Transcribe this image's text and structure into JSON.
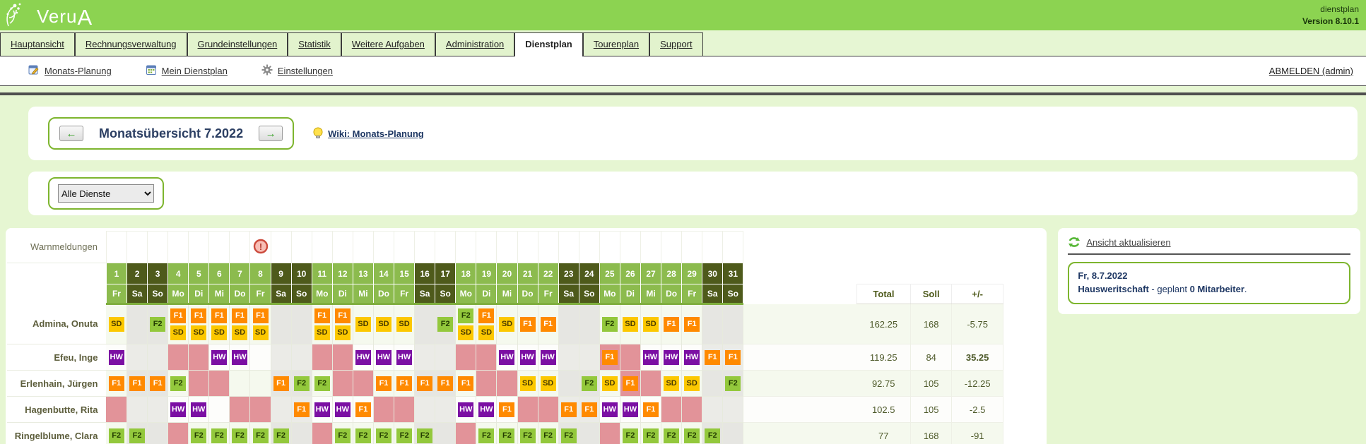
{
  "app": {
    "logo": "VeruA",
    "logo_prefix": "Veru",
    "logo_last": "A",
    "product": "dienstplan",
    "version": "Version 8.10.1"
  },
  "tabs": [
    {
      "label": "Hauptansicht",
      "active": false
    },
    {
      "label": "Rechnungsverwaltung",
      "active": false
    },
    {
      "label": "Grundeinstellungen",
      "active": false
    },
    {
      "label": "Statistik",
      "active": false
    },
    {
      "label": "Weitere Aufgaben",
      "active": false
    },
    {
      "label": "Administration",
      "active": false
    },
    {
      "label": "Dienstplan",
      "active": true
    },
    {
      "label": "Tourenplan",
      "active": false
    },
    {
      "label": "Support",
      "active": false
    }
  ],
  "toolbar": {
    "links": [
      {
        "label": "Monats-Planung",
        "icon": "calendar-edit-icon"
      },
      {
        "label": "Mein Dienstplan",
        "icon": "calendar-icon"
      },
      {
        "label": "Einstellungen",
        "icon": "gear-icon"
      }
    ],
    "logout_label": "ABMELDEN (admin)"
  },
  "month_nav": {
    "title": "Monatsübersicht 7.2022",
    "prev_arrow": "←",
    "next_arrow": "→",
    "wiki_label": "Wiki: Monats-Planung"
  },
  "filter": {
    "selected": "Alle Dienste"
  },
  "roster": {
    "warn_label": "Warnmeldungen",
    "warning_day": 8,
    "weekday_names": [
      "Fr",
      "Sa",
      "So",
      "Mo",
      "Di",
      "Mi",
      "Do",
      "Fr",
      "Sa",
      "So",
      "Mo",
      "Di",
      "Mi",
      "Do",
      "Fr",
      "Sa",
      "So",
      "Mo",
      "Di",
      "Mi",
      "Do",
      "Fr",
      "Sa",
      "So",
      "Mo",
      "Di",
      "Mi",
      "Do",
      "Fr",
      "Sa",
      "So"
    ],
    "sum_headers": {
      "total": "Total",
      "soll": "Soll",
      "diff": "+/-"
    },
    "shift_types": {
      "SD": {
        "bg": "#fcc800",
        "fg": "#4a3c00"
      },
      "F1": {
        "bg": "#ff8a00",
        "fg": "#ffffff"
      },
      "F2": {
        "bg": "#93c83c",
        "fg": "#233c00"
      },
      "HW": {
        "bg": "#7b0fa3",
        "fg": "#ffffff"
      }
    },
    "absence_color": "#e29399",
    "employees": [
      {
        "name": "Admina, Onuta",
        "total": "162.25",
        "soll": "168",
        "diff": "-5.75",
        "diff_positive": false,
        "shifts": {
          "1": [
            "SD"
          ],
          "3": [
            "F2"
          ],
          "4": [
            "F1",
            "SD"
          ],
          "5": [
            "F1",
            "SD"
          ],
          "6": [
            "F1",
            "SD"
          ],
          "7": [
            "F1",
            "SD"
          ],
          "8": [
            "F1",
            "SD"
          ],
          "11": [
            "F1",
            "SD"
          ],
          "12": [
            "F1",
            "SD"
          ],
          "13": [
            "SD"
          ],
          "14": [
            "SD"
          ],
          "15": [
            "SD"
          ],
          "17": [
            "F2"
          ],
          "18": [
            "F2",
            "SD"
          ],
          "19": [
            "F1",
            "SD"
          ],
          "20": [
            "SD"
          ],
          "21": [
            "F1"
          ],
          "22": [
            "F1"
          ],
          "25": [
            "F2"
          ],
          "26": [
            "SD"
          ],
          "27": [
            "SD"
          ],
          "28": [
            "F1"
          ],
          "29": [
            "F1"
          ]
        },
        "absent": []
      },
      {
        "name": "Efeu, Inge",
        "total": "119.25",
        "soll": "84",
        "diff": "35.25",
        "diff_positive": true,
        "shifts": {
          "1": [
            "HW"
          ],
          "6": [
            "HW"
          ],
          "7": [
            "HW"
          ],
          "13": [
            "HW"
          ],
          "14": [
            "HW"
          ],
          "15": [
            "HW"
          ],
          "20": [
            "HW"
          ],
          "21": [
            "HW"
          ],
          "22": [
            "HW"
          ],
          "25": [
            "F1"
          ],
          "27": [
            "HW"
          ],
          "28": [
            "HW"
          ],
          "29": [
            "HW"
          ],
          "30": [
            "F1"
          ],
          "31": [
            "F1"
          ]
        },
        "absent": [
          4,
          5,
          11,
          12,
          18,
          19,
          25,
          26
        ]
      },
      {
        "name": "Erlenhain, Jürgen",
        "total": "92.75",
        "soll": "105",
        "diff": "-12.25",
        "diff_positive": false,
        "shifts": {
          "1": [
            "F1"
          ],
          "2": [
            "F1"
          ],
          "3": [
            "F1"
          ],
          "4": [
            "F2"
          ],
          "9": [
            "F1"
          ],
          "10": [
            "F2"
          ],
          "11": [
            "F2"
          ],
          "14": [
            "F1"
          ],
          "15": [
            "F1"
          ],
          "16": [
            "F1"
          ],
          "17": [
            "F1"
          ],
          "18": [
            "F1"
          ],
          "21": [
            "SD"
          ],
          "22": [
            "SD"
          ],
          "24": [
            "F2"
          ],
          "25": [
            "SD"
          ],
          "26": [
            "F1"
          ],
          "28": [
            "SD"
          ],
          "29": [
            "SD"
          ],
          "31": [
            "F2"
          ]
        },
        "absent": [
          5,
          6,
          12,
          13,
          19,
          20,
          26,
          27
        ]
      },
      {
        "name": "Hagenbutte, Rita",
        "total": "102.5",
        "soll": "105",
        "diff": "-2.5",
        "diff_positive": false,
        "shifts": {
          "4": [
            "HW"
          ],
          "5": [
            "HW"
          ],
          "10": [
            "F1"
          ],
          "11": [
            "HW"
          ],
          "12": [
            "HW"
          ],
          "13": [
            "F1"
          ],
          "18": [
            "HW"
          ],
          "19": [
            "HW"
          ],
          "20": [
            "F1"
          ],
          "23": [
            "F1"
          ],
          "24": [
            "F1"
          ],
          "25": [
            "HW"
          ],
          "26": [
            "HW"
          ],
          "27": [
            "F1"
          ]
        },
        "absent": [
          1,
          7,
          8,
          14,
          15,
          21,
          22,
          28,
          29
        ]
      },
      {
        "name": "Ringelblume, Clara",
        "total": "77",
        "soll": "168",
        "diff": "-91",
        "diff_positive": false,
        "shifts": {
          "1": [
            "F2"
          ],
          "2": [
            "F2"
          ],
          "5": [
            "F2"
          ],
          "6": [
            "F2"
          ],
          "7": [
            "F2"
          ],
          "8": [
            "F2"
          ],
          "9": [
            "F2"
          ],
          "12": [
            "F2"
          ],
          "13": [
            "F2"
          ],
          "14": [
            "F2"
          ],
          "15": [
            "F2"
          ],
          "16": [
            "F2"
          ],
          "19": [
            "F2"
          ],
          "20": [
            "F2"
          ],
          "21": [
            "F2"
          ],
          "22": [
            "F2"
          ],
          "23": [
            "F2"
          ],
          "26": [
            "F2"
          ],
          "27": [
            "F2"
          ],
          "28": [
            "F2"
          ],
          "29": [
            "F2"
          ],
          "30": [
            "F2"
          ]
        },
        "absent": [
          4,
          11,
          18,
          25
        ]
      }
    ]
  },
  "side": {
    "refresh_label": "Ansicht aktualisieren",
    "info_date": "Fr, 8.7.2022",
    "info_dept": "Hausweritschaft",
    "info_mid": " - geplant ",
    "info_count": "0 Mitarbeiter",
    "info_end": "."
  }
}
